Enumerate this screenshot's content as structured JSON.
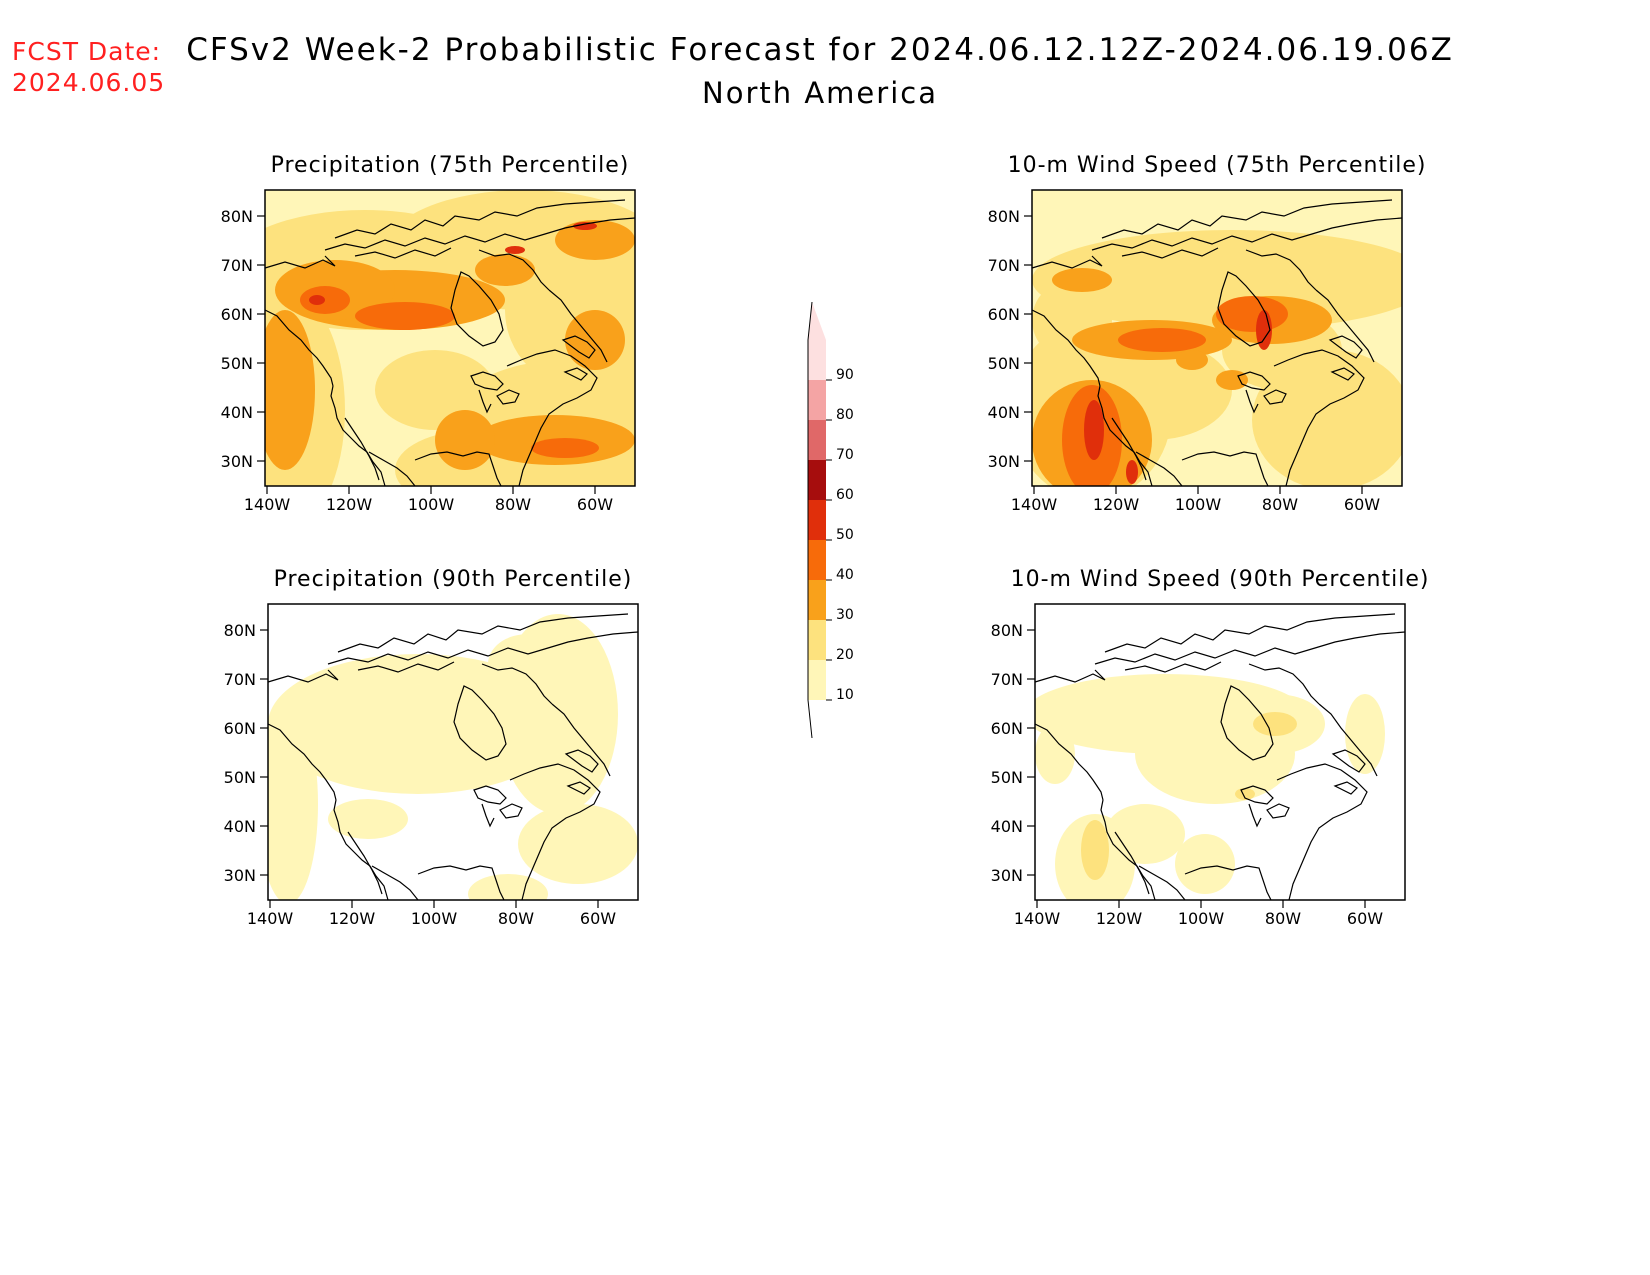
{
  "fcst_label": {
    "line1": "FCST Date:",
    "line2": "2024.06.05"
  },
  "header": {
    "title": "CFSv2 Week-2 Probabilistic Forecast for 2024.06.12.12Z-2024.06.19.06Z",
    "subtitle": "North America"
  },
  "colors": {
    "levels": [
      "#fff6b8",
      "#fde27e",
      "#f9a11b",
      "#f76b0a",
      "#e02f0b",
      "#a60d0d",
      "#e06868",
      "#f4a4a4",
      "#fde0e0"
    ],
    "line": "#000000",
    "background": "#ffffff"
  },
  "colorbar": {
    "labels": [
      "10",
      "20",
      "30",
      "40",
      "50",
      "60",
      "70",
      "80",
      "90"
    ]
  },
  "axes": {
    "lat_labels": [
      "80N",
      "70N",
      "60N",
      "50N",
      "40N",
      "30N"
    ],
    "lon_labels": [
      "140W",
      "120W",
      "100W",
      "80W",
      "60W"
    ]
  },
  "panels": [
    {
      "id": "precip-75",
      "title": "Precipitation (75th Percentile)"
    },
    {
      "id": "wind-75",
      "title": "10-m Wind Speed (75th Percentile)"
    },
    {
      "id": "precip-90",
      "title": "Precipitation (90th Percentile)"
    },
    {
      "id": "wind-90",
      "title": "10-m Wind Speed (90th Percentile)"
    }
  ]
}
